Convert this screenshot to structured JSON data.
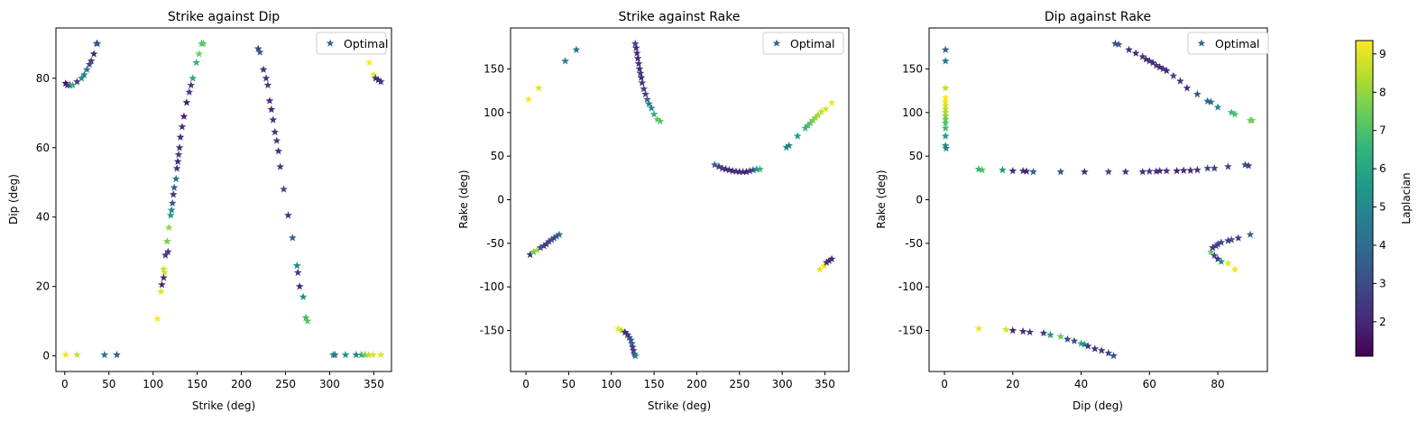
{
  "colormap": {
    "name": "viridis",
    "label": "Laplacian",
    "range": [
      1.1,
      9.35
    ],
    "ticks": [
      2,
      3,
      4,
      5,
      6,
      7,
      8,
      9
    ],
    "stops": [
      "#440154",
      "#482878",
      "#3e4989",
      "#31688e",
      "#26828e",
      "#1f9e89",
      "#35b779",
      "#6ece58",
      "#b5de2b",
      "#fde725"
    ]
  },
  "marker": "star",
  "chart_data": [
    {
      "type": "scatter",
      "title": "Strike against Dip",
      "xlabel": "Strike (deg)",
      "ylabel": "Dip (deg)",
      "xlim": [
        -10,
        370
      ],
      "ylim": [
        -4.5,
        94.5
      ],
      "xticks": [
        0,
        50,
        100,
        150,
        200,
        250,
        300,
        350
      ],
      "yticks": [
        0,
        20,
        40,
        60,
        80
      ],
      "legend": {
        "label": "Optimal",
        "position": "top-right",
        "color": "#31688e"
      },
      "points": [
        [
          1,
          78.5,
          1.4
        ],
        [
          3,
          78,
          2.0
        ],
        [
          6,
          78,
          3.2
        ],
        [
          9,
          78,
          6.5
        ],
        [
          14,
          79,
          2.3
        ],
        [
          19,
          80,
          5.2
        ],
        [
          22,
          81,
          4.7
        ],
        [
          25,
          82.5,
          4.3
        ],
        [
          28,
          84,
          3.0
        ],
        [
          30,
          85,
          2.6
        ],
        [
          33,
          87,
          2.0
        ],
        [
          36,
          90,
          3.8
        ],
        [
          37,
          90,
          3.3
        ],
        [
          110,
          20.5,
          2.2
        ],
        [
          112,
          25,
          8.7
        ],
        [
          114,
          29,
          2.5
        ],
        [
          116,
          33,
          7.6
        ],
        [
          118,
          37,
          8.0
        ],
        [
          120,
          40.5,
          5.6
        ],
        [
          121,
          42,
          5.0
        ],
        [
          122,
          44,
          3.3
        ],
        [
          123,
          46.5,
          2.4
        ],
        [
          124,
          48.5,
          3.6
        ],
        [
          126,
          51,
          4.2
        ],
        [
          127,
          54,
          2.4
        ],
        [
          128,
          56,
          2.0
        ],
        [
          129,
          58,
          2.8
        ],
        [
          130,
          60,
          2.2
        ],
        [
          131,
          63,
          2.1
        ],
        [
          133,
          66,
          2.4
        ],
        [
          135,
          69,
          1.8
        ],
        [
          138,
          73,
          1.8
        ],
        [
          141,
          76,
          2.5
        ],
        [
          143,
          78,
          2.6
        ],
        [
          145,
          80,
          6.0
        ],
        [
          149,
          84.5,
          6.6
        ],
        [
          152,
          87,
          7.5
        ],
        [
          155,
          90,
          7.0
        ],
        [
          157,
          90,
          7.3
        ],
        [
          109,
          18.5,
          9.0
        ],
        [
          113,
          24,
          8.8
        ],
        [
          112,
          22.5,
          2.3
        ],
        [
          117,
          30,
          2.5
        ],
        [
          105,
          10.7,
          9.3
        ],
        [
          219,
          88.5,
          2.9
        ],
        [
          221,
          87.5,
          3.4
        ],
        [
          225,
          82.5,
          2.2
        ],
        [
          228,
          80,
          2.4
        ],
        [
          230,
          78,
          2.6
        ],
        [
          232,
          73.5,
          2.1
        ],
        [
          234,
          71,
          2.0
        ],
        [
          236,
          68,
          2.3
        ],
        [
          238,
          64.5,
          2.4
        ],
        [
          240,
          62,
          2.6
        ],
        [
          242,
          59,
          2.3
        ],
        [
          244,
          54.5,
          2.4
        ],
        [
          248,
          48,
          3.0
        ],
        [
          253,
          40.5,
          2.3
        ],
        [
          258,
          34,
          3.6
        ],
        [
          263,
          26,
          5.0
        ],
        [
          264,
          24,
          2.5
        ],
        [
          266,
          20,
          2.1
        ],
        [
          270,
          17,
          5.2
        ],
        [
          273,
          11,
          6.8
        ],
        [
          275,
          10,
          7.2
        ],
        [
          345,
          84.5,
          9.3
        ],
        [
          350,
          81,
          9.0
        ],
        [
          352,
          80,
          2.2
        ],
        [
          355,
          79.5,
          2.0
        ],
        [
          358,
          79,
          2.2
        ],
        [
          1,
          0.3,
          9.2
        ],
        [
          14,
          0.3,
          8.7
        ],
        [
          45,
          0.3,
          4.2
        ],
        [
          59,
          0.3,
          3.6
        ],
        [
          304,
          0.3,
          5.2
        ],
        [
          306,
          0.3,
          4.4
        ],
        [
          318,
          0.3,
          5.5
        ],
        [
          330,
          0.3,
          5.0
        ],
        [
          336,
          0.3,
          6.2
        ],
        [
          340,
          0.3,
          7.4
        ],
        [
          344,
          0.3,
          8.6
        ],
        [
          349,
          0.3,
          8.8
        ],
        [
          358,
          0.3,
          9.0
        ]
      ]
    },
    {
      "type": "scatter",
      "title": "Strike against Rake",
      "xlabel": "Strike (deg)",
      "ylabel": "Rake (deg)",
      "xlim": [
        -18,
        378
      ],
      "ylim": [
        -197,
        197
      ],
      "xticks": [
        0,
        50,
        100,
        150,
        200,
        250,
        300,
        350
      ],
      "yticks": [
        -150,
        -100,
        -50,
        0,
        50,
        100,
        150
      ],
      "legend": {
        "label": "Optimal",
        "position": "top-right",
        "color": "#31688e"
      },
      "points": [
        [
          3,
          115,
          9.3
        ],
        [
          15,
          128,
          9.0
        ],
        [
          46,
          159,
          4.6
        ],
        [
          59,
          172,
          4.2
        ],
        [
          128,
          179,
          3.0
        ],
        [
          129,
          174,
          2.2
        ],
        [
          130,
          168,
          2.1
        ],
        [
          131,
          162,
          2.0
        ],
        [
          132,
          156,
          2.2
        ],
        [
          133,
          150,
          2.1
        ],
        [
          134,
          145,
          2.4
        ],
        [
          135,
          140,
          2.0
        ],
        [
          136,
          134,
          2.3
        ],
        [
          138,
          127,
          2.6
        ],
        [
          140,
          121,
          2.8
        ],
        [
          142,
          115,
          3.6
        ],
        [
          144,
          110,
          4.4
        ],
        [
          147,
          105,
          5.0
        ],
        [
          150,
          98,
          6.5
        ],
        [
          154,
          92,
          7.3
        ],
        [
          157,
          90,
          7.1
        ],
        [
          221,
          40,
          3.5
        ],
        [
          226,
          38,
          2.4
        ],
        [
          230,
          36,
          2.6
        ],
        [
          234,
          35,
          2.2
        ],
        [
          238,
          34,
          2.3
        ],
        [
          242,
          33,
          2.0
        ],
        [
          246,
          32.5,
          2.5
        ],
        [
          250,
          32,
          2.1
        ],
        [
          254,
          32,
          2.3
        ],
        [
          258,
          32,
          1.9
        ],
        [
          262,
          33,
          2.6
        ],
        [
          266,
          34,
          3.0
        ],
        [
          270,
          35,
          5.2
        ],
        [
          274,
          35,
          6.6
        ],
        [
          305,
          60,
          5.0
        ],
        [
          308,
          62,
          4.8
        ],
        [
          318,
          73,
          5.7
        ],
        [
          327,
          82,
          6.6
        ],
        [
          330,
          85,
          6.8
        ],
        [
          333,
          88,
          7.3
        ],
        [
          336,
          91,
          7.6
        ],
        [
          339,
          94,
          8.0
        ],
        [
          342,
          97,
          8.2
        ],
        [
          346,
          101,
          8.6
        ],
        [
          351,
          104,
          8.9
        ],
        [
          358,
          111,
          9.2
        ],
        [
          5,
          -63,
          2.3
        ],
        [
          9,
          -60,
          7.4
        ],
        [
          13,
          -58,
          8.3
        ],
        [
          17,
          -55,
          3.3
        ],
        [
          21,
          -53,
          2.6
        ],
        [
          24,
          -51,
          2.4
        ],
        [
          27,
          -48,
          2.8
        ],
        [
          30,
          -46,
          3.0
        ],
        [
          33,
          -44,
          2.6
        ],
        [
          36,
          -42,
          3.3
        ],
        [
          39,
          -40,
          3.9
        ],
        [
          108,
          -148,
          9.2
        ],
        [
          112,
          -150,
          8.5
        ],
        [
          116,
          -152,
          2.0
        ],
        [
          119,
          -155,
          2.2
        ],
        [
          121,
          -158,
          2.9
        ],
        [
          123,
          -161,
          3.3
        ],
        [
          124,
          -165,
          3.6
        ],
        [
          125,
          -169,
          2.6
        ],
        [
          126,
          -173,
          2.4
        ],
        [
          127,
          -177,
          3.2
        ],
        [
          128,
          -179,
          4.4
        ],
        [
          344,
          -80,
          9.1
        ],
        [
          349,
          -76,
          9.3
        ],
        [
          352,
          -72,
          2.2
        ],
        [
          355,
          -70,
          2.1
        ],
        [
          358,
          -68,
          2.0
        ]
      ]
    },
    {
      "type": "scatter",
      "title": "Dip against Rake",
      "xlabel": "Dip (deg)",
      "ylabel": "Rake (deg)",
      "xlim": [
        -4.5,
        94.5
      ],
      "ylim": [
        -197,
        197
      ],
      "xticks": [
        0,
        20,
        40,
        60,
        80
      ],
      "yticks": [
        -150,
        -100,
        -50,
        0,
        50,
        100,
        150
      ],
      "legend": {
        "label": "Optimal",
        "position": "top-right",
        "color": "#31688e"
      },
      "points": [
        [
          0.3,
          172,
          3.6
        ],
        [
          0.3,
          159,
          4.5
        ],
        [
          0.3,
          128,
          8.6
        ],
        [
          0.3,
          117,
          9.3
        ],
        [
          0.3,
          112,
          9.2
        ],
        [
          0.3,
          108,
          8.9
        ],
        [
          0.3,
          104,
          8.6
        ],
        [
          0.3,
          100,
          8.4
        ],
        [
          0.3,
          96,
          8.0
        ],
        [
          0.3,
          92,
          7.5
        ],
        [
          0.3,
          88,
          7.1
        ],
        [
          0.3,
          82,
          6.7
        ],
        [
          0.3,
          73,
          5.4
        ],
        [
          0.3,
          62,
          5.0
        ],
        [
          0.5,
          59,
          4.8
        ],
        [
          50,
          179,
          3.1
        ],
        [
          51,
          178,
          3.6
        ],
        [
          54,
          172,
          2.2
        ],
        [
          56,
          168,
          2.0
        ],
        [
          58,
          164,
          2.4
        ],
        [
          59,
          161,
          2.2
        ],
        [
          60,
          159,
          2.3
        ],
        [
          61,
          157,
          2.1
        ],
        [
          62,
          154,
          2.5
        ],
        [
          63,
          152,
          2.1
        ],
        [
          64,
          150,
          2.4
        ],
        [
          65,
          148,
          2.0
        ],
        [
          67,
          142,
          2.8
        ],
        [
          69,
          136,
          2.5
        ],
        [
          71,
          128,
          2.3
        ],
        [
          74,
          121,
          3.2
        ],
        [
          77,
          113,
          3.6
        ],
        [
          78,
          112,
          4.0
        ],
        [
          80,
          106,
          5.1
        ],
        [
          84,
          100,
          6.6
        ],
        [
          85,
          98,
          7.0
        ],
        [
          90,
          91,
          7.4
        ],
        [
          89.5,
          91,
          7.6
        ],
        [
          10,
          35,
          6.6
        ],
        [
          11,
          34,
          7.0
        ],
        [
          17,
          34,
          5.6
        ],
        [
          20,
          33,
          2.1
        ],
        [
          23,
          33,
          2.3
        ],
        [
          24,
          32.5,
          2.0
        ],
        [
          26,
          32,
          3.4
        ],
        [
          34,
          32,
          3.2
        ],
        [
          41,
          32,
          2.0
        ],
        [
          48,
          32,
          2.8
        ],
        [
          53,
          32,
          2.4
        ],
        [
          58,
          32,
          2.1
        ],
        [
          60,
          32.5,
          2.6
        ],
        [
          62,
          32.5,
          2.2
        ],
        [
          63,
          33,
          2.1
        ],
        [
          65,
          33,
          2.4
        ],
        [
          68,
          33,
          1.9
        ],
        [
          70,
          33.5,
          2.1
        ],
        [
          72,
          33.5,
          2.0
        ],
        [
          74,
          34,
          2.3
        ],
        [
          77,
          36,
          3.0
        ],
        [
          79,
          36,
          2.6
        ],
        [
          83,
          38,
          2.8
        ],
        [
          88,
          40,
          3.2
        ],
        [
          89,
          39,
          2.7
        ],
        [
          78,
          -60,
          7.4
        ],
        [
          78.5,
          -55,
          2.4
        ],
        [
          79.5,
          -53,
          2.6
        ],
        [
          80,
          -51,
          2.8
        ],
        [
          81,
          -49,
          3.0
        ],
        [
          83,
          -47,
          2.6
        ],
        [
          84,
          -46,
          3.3
        ],
        [
          86,
          -44,
          2.5
        ],
        [
          89.5,
          -40,
          3.8
        ],
        [
          79,
          -64,
          3.1
        ],
        [
          80,
          -68,
          2.2
        ],
        [
          81,
          -71,
          5.0
        ],
        [
          83,
          -73,
          9.0
        ],
        [
          85,
          -80,
          9.2
        ],
        [
          10,
          -148,
          9.1
        ],
        [
          18,
          -149,
          8.9
        ],
        [
          20,
          -150,
          2.0
        ],
        [
          23,
          -151,
          2.2
        ],
        [
          25,
          -152,
          2.4
        ],
        [
          29,
          -153,
          2.6
        ],
        [
          31,
          -155,
          5.5
        ],
        [
          34,
          -157,
          7.4
        ],
        [
          36,
          -160,
          2.9
        ],
        [
          38,
          -162,
          3.1
        ],
        [
          40,
          -165,
          6.0
        ],
        [
          41,
          -166,
          5.3
        ],
        [
          42,
          -168,
          2.4
        ],
        [
          44,
          -171,
          2.2
        ],
        [
          46,
          -173,
          2.5
        ],
        [
          48,
          -176,
          2.8
        ],
        [
          49.5,
          -179,
          3.3
        ]
      ]
    }
  ]
}
